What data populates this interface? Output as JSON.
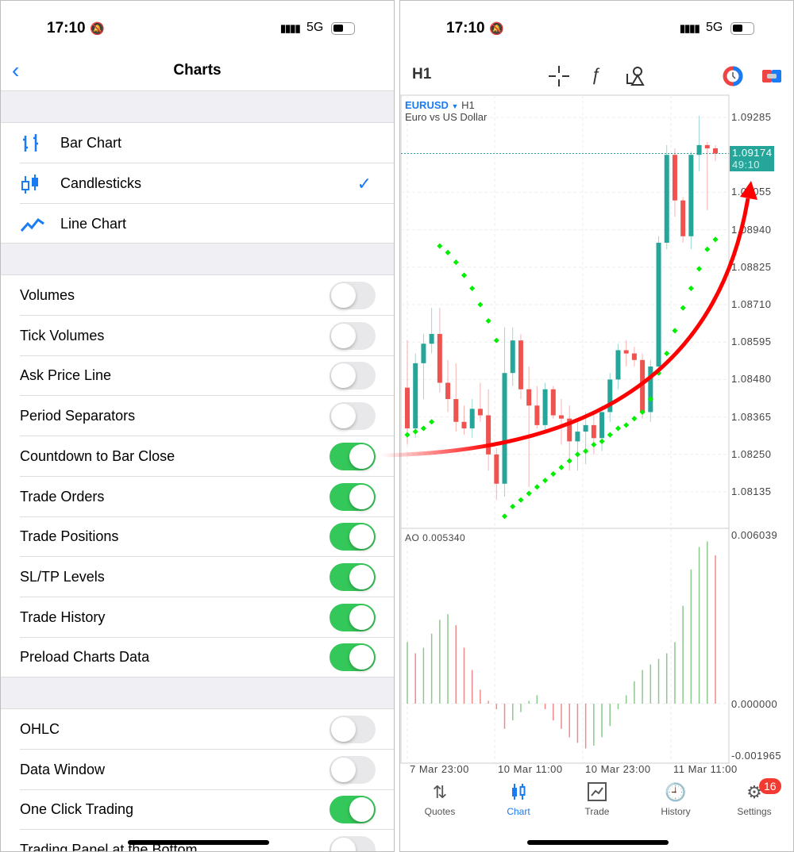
{
  "status_bar": {
    "time": "17:10",
    "network": "5G"
  },
  "left": {
    "title": "Charts",
    "chart_types": [
      {
        "label": "Bar Chart",
        "icon": "bar-chart-icon"
      },
      {
        "label": "Candlesticks",
        "icon": "candlesticks-icon",
        "selected": true
      },
      {
        "label": "Line Chart",
        "icon": "line-chart-icon"
      }
    ],
    "toggles": [
      {
        "label": "Volumes",
        "on": false
      },
      {
        "label": "Tick Volumes",
        "on": false
      },
      {
        "label": "Ask Price Line",
        "on": false
      },
      {
        "label": "Period Separators",
        "on": false
      },
      {
        "label": "Countdown to Bar Close",
        "on": true
      },
      {
        "label": "Trade Orders",
        "on": true
      },
      {
        "label": "Trade Positions",
        "on": true
      },
      {
        "label": "SL/TP Levels",
        "on": true
      },
      {
        "label": "Trade History",
        "on": true
      },
      {
        "label": "Preload Charts Data",
        "on": true
      }
    ],
    "toggles2": [
      {
        "label": "OHLC",
        "on": false
      },
      {
        "label": "Data Window",
        "on": false
      },
      {
        "label": "One Click Trading",
        "on": true
      },
      {
        "label": "Trading Panel at the Bottom",
        "on": false
      }
    ]
  },
  "right": {
    "timeframe": "H1",
    "symbol": "EURUSD",
    "symbol_tf": "H1",
    "description": "Euro vs US Dollar",
    "current_price": "1.09174",
    "countdown": "49:10",
    "price_labels": [
      "1.09285",
      "1.09055",
      "1.08940",
      "1.08825",
      "1.08710",
      "1.08595",
      "1.08480",
      "1.08365",
      "1.08250",
      "1.08135"
    ],
    "ao_label": "AO 0.005340",
    "ao_labels": [
      "0.006039",
      "0.000000",
      "-0.001965"
    ],
    "time_labels": [
      "7 Mar 23:00",
      "10 Mar 11:00",
      "10 Mar 23:00",
      "11 Mar 11:00"
    ],
    "tabs": [
      {
        "label": "Quotes",
        "icon": "quotes-icon"
      },
      {
        "label": "Chart",
        "icon": "chart-icon",
        "active": true
      },
      {
        "label": "Trade",
        "icon": "trade-icon"
      },
      {
        "label": "History",
        "icon": "history-icon"
      },
      {
        "label": "Settings",
        "icon": "settings-icon"
      }
    ],
    "settings_badge": "16",
    "colors": {
      "bull": "#26a69a",
      "bear": "#ef5350",
      "sar": "#00ee00",
      "accent": "#1a7cf5",
      "arrow": "#ff0000"
    }
  },
  "chart_data": {
    "type": "candlestick",
    "symbol": "EURUSD",
    "timeframe": "H1",
    "ylim": [
      1.0806,
      1.0935
    ],
    "ohlc": [
      [
        1.08455,
        1.086,
        1.0828,
        1.0833
      ],
      [
        1.0833,
        1.0856,
        1.083,
        1.0853
      ],
      [
        1.0853,
        1.0862,
        1.0842,
        1.0859
      ],
      [
        1.0859,
        1.087,
        1.0856,
        1.0862
      ],
      [
        1.0862,
        1.087,
        1.0844,
        1.0847
      ],
      [
        1.0847,
        1.0854,
        1.0838,
        1.0842
      ],
      [
        1.0842,
        1.0853,
        1.0832,
        1.0835
      ],
      [
        1.0835,
        1.084,
        1.0831,
        1.0833
      ],
      [
        1.0833,
        1.0842,
        1.083,
        1.0839
      ],
      [
        1.0839,
        1.0847,
        1.0835,
        1.0837
      ],
      [
        1.0837,
        1.0845,
        1.082,
        1.0825
      ],
      [
        1.0825,
        1.0827,
        1.0811,
        1.0816
      ],
      [
        1.0816,
        1.0864,
        1.0812,
        1.085
      ],
      [
        1.085,
        1.0864,
        1.0846,
        1.086
      ],
      [
        1.086,
        1.0862,
        1.0842,
        1.0845
      ],
      [
        1.0845,
        1.0852,
        1.0815,
        1.084
      ],
      [
        1.084,
        1.0846,
        1.0833,
        1.0834
      ],
      [
        1.0834,
        1.0847,
        1.0832,
        1.0845
      ],
      [
        1.0845,
        1.0846,
        1.0836,
        1.0837
      ],
      [
        1.0837,
        1.0842,
        1.0828,
        1.0836
      ],
      [
        1.0836,
        1.084,
        1.082,
        1.0829
      ],
      [
        1.0829,
        1.0835,
        1.082,
        1.0832
      ],
      [
        1.0832,
        1.0838,
        1.0822,
        1.0834
      ],
      [
        1.0834,
        1.0838,
        1.0825,
        1.083
      ],
      [
        1.083,
        1.084,
        1.0826,
        1.0838
      ],
      [
        1.0838,
        1.085,
        1.0835,
        1.0848
      ],
      [
        1.0848,
        1.0859,
        1.0845,
        1.0857
      ],
      [
        1.0857,
        1.086,
        1.0852,
        1.0856
      ],
      [
        1.0856,
        1.0858,
        1.0852,
        1.0854
      ],
      [
        1.0854,
        1.0856,
        1.0836,
        1.0838
      ],
      [
        1.0838,
        1.0854,
        1.0835,
        1.0852
      ],
      [
        1.0852,
        1.0892,
        1.085,
        1.089
      ],
      [
        1.089,
        1.092,
        1.0888,
        1.0917
      ],
      [
        1.0917,
        1.0919,
        1.0898,
        1.0903
      ],
      [
        1.0903,
        1.0904,
        1.089,
        1.0892
      ],
      [
        1.0892,
        1.0918,
        1.0888,
        1.0917
      ],
      [
        1.0917,
        1.0929,
        1.0912,
        1.092
      ],
      [
        1.092,
        1.0921,
        1.09,
        1.0919
      ],
      [
        1.0919,
        1.092,
        1.0915,
        1.09174
      ]
    ],
    "sar": [
      1.0831,
      1.0832,
      1.0833,
      1.0835,
      1.0889,
      1.0887,
      1.0884,
      1.088,
      1.0876,
      1.0871,
      1.0866,
      1.086,
      1.0806,
      1.0809,
      1.0811,
      1.0813,
      1.0815,
      1.0817,
      1.0819,
      1.0821,
      1.0823,
      1.0825,
      1.0826,
      1.0828,
      1.0829,
      1.0831,
      1.0833,
      1.0834,
      1.0836,
      1.0838,
      1.0842,
      1.085,
      1.0856,
      1.0863,
      1.087,
      1.0876,
      1.0882,
      1.0888,
      1.0891
    ],
    "ao": [
      0.0022,
      0.0018,
      0.002,
      0.0025,
      0.003,
      0.0032,
      0.0028,
      0.002,
      0.0012,
      0.0005,
      0.0001,
      -0.0002,
      -0.0009,
      -0.0006,
      -0.0003,
      0.0001,
      0.0003,
      -0.0002,
      -0.0006,
      -0.0009,
      -0.0012,
      -0.0014,
      -0.0016,
      -0.0015,
      -0.0012,
      -0.0008,
      -0.0002,
      0.0003,
      0.0008,
      0.0012,
      0.0014,
      0.0016,
      0.0018,
      0.0022,
      0.0035,
      0.0048,
      0.0056,
      0.0058,
      0.0053
    ],
    "ao_ylim": [
      -0.001965,
      0.006039
    ]
  }
}
